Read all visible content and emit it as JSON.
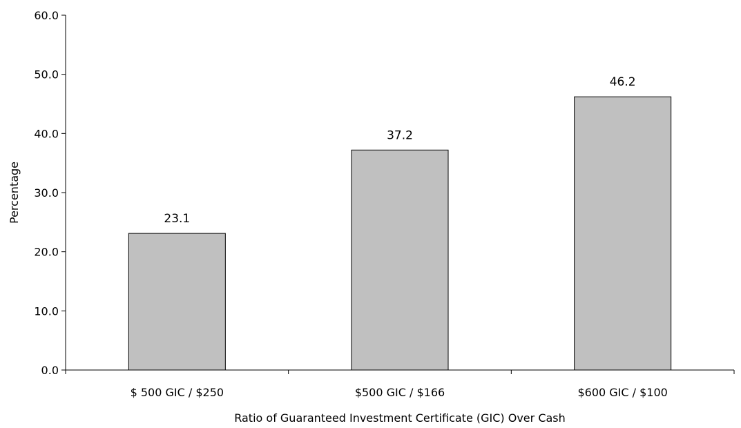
{
  "chart_data": {
    "type": "bar",
    "title": "",
    "xlabel": "Ratio of Guaranteed Investment Certificate (GIC) Over Cash",
    "ylabel": "Percentage",
    "categories": [
      "$ 500 GIC / $250",
      "$500 GIC / $166",
      "$600 GIC / $100"
    ],
    "values": [
      23.1,
      37.2,
      46.2
    ],
    "data_labels": [
      "23.1",
      "37.2",
      "46.2"
    ],
    "ylim": [
      0,
      60
    ],
    "yticks": [
      0,
      10,
      20,
      30,
      40,
      50,
      60
    ],
    "ytick_labels": [
      "0.0",
      "10.0",
      "20.0",
      "30.0",
      "40.0",
      "50.0",
      "60.0"
    ],
    "grid": false,
    "legend": "none",
    "bar_color": "#c0c0c0",
    "bar_edge_color": "#000000"
  }
}
